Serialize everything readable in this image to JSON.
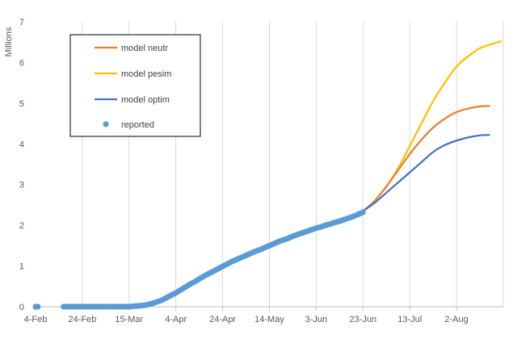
{
  "chart_data": {
    "type": "line",
    "title": "",
    "xlabel": "",
    "ylabel": "Millions",
    "x_start": "4-Feb",
    "x_ticks": [
      "4-Feb",
      "24-Feb",
      "15-Mar",
      "4-Apr",
      "24-Apr",
      "14-May",
      "3-Jun",
      "23-Jun",
      "13-Jul",
      "2-Aug"
    ],
    "x_tick_days": [
      0,
      20,
      40,
      60,
      80,
      100,
      120,
      140,
      160,
      180
    ],
    "xlim_days": [
      0,
      200
    ],
    "y_ticks": [
      "0",
      "1",
      "2",
      "3",
      "4",
      "5",
      "6",
      "7"
    ],
    "ylim": [
      0,
      7
    ],
    "grid": "vertical",
    "legend": {
      "placement": "top-left",
      "entries": [
        "model neutr",
        "model pesim",
        "model optim",
        "reported"
      ]
    },
    "series": [
      {
        "name": "model neutr",
        "style": "line",
        "color": "#ED7D31",
        "x_days": [
          140,
          145,
          150,
          155,
          160,
          165,
          170,
          175,
          180,
          185,
          190,
          194
        ],
        "values": [
          2.35,
          2.6,
          2.95,
          3.35,
          3.75,
          4.1,
          4.4,
          4.62,
          4.78,
          4.87,
          4.92,
          4.93
        ]
      },
      {
        "name": "model pesim",
        "style": "line",
        "color": "#FFC000",
        "x_days": [
          140,
          145,
          150,
          155,
          160,
          165,
          170,
          175,
          180,
          185,
          190,
          195,
          199
        ],
        "values": [
          2.35,
          2.6,
          2.95,
          3.4,
          3.95,
          4.5,
          5.05,
          5.5,
          5.9,
          6.15,
          6.35,
          6.45,
          6.52
        ]
      },
      {
        "name": "model optim",
        "style": "line",
        "color": "#4472C4",
        "x_days": [
          140,
          145,
          150,
          155,
          160,
          165,
          170,
          175,
          180,
          185,
          190,
          194
        ],
        "values": [
          2.35,
          2.55,
          2.8,
          3.05,
          3.3,
          3.55,
          3.8,
          3.97,
          4.08,
          4.16,
          4.21,
          4.22
        ]
      },
      {
        "name": "reported",
        "style": "markers",
        "color": "#5B9BD5",
        "x_days": [
          0,
          1,
          12,
          14,
          16,
          18,
          20,
          22,
          24,
          26,
          28,
          30,
          32,
          34,
          36,
          38,
          40,
          42,
          44,
          46,
          48,
          50,
          52,
          54,
          56,
          58,
          60,
          62,
          64,
          66,
          68,
          70,
          72,
          74,
          76,
          78,
          80,
          82,
          84,
          86,
          88,
          90,
          92,
          94,
          96,
          98,
          100,
          102,
          104,
          106,
          108,
          110,
          112,
          114,
          116,
          118,
          120,
          122,
          124,
          126,
          128,
          130,
          132,
          134,
          136,
          138,
          140
        ],
        "values": [
          0.0,
          0.0,
          0.0,
          0.0,
          0.0,
          0.0,
          0.0,
          0.0,
          0.0,
          0.0,
          0.0,
          0.0,
          0.0,
          0.0,
          0.0,
          0.0,
          0.0,
          0.01,
          0.02,
          0.03,
          0.05,
          0.08,
          0.12,
          0.16,
          0.22,
          0.28,
          0.34,
          0.41,
          0.48,
          0.55,
          0.61,
          0.68,
          0.75,
          0.81,
          0.87,
          0.93,
          0.99,
          1.05,
          1.11,
          1.16,
          1.21,
          1.26,
          1.31,
          1.36,
          1.4,
          1.45,
          1.5,
          1.55,
          1.6,
          1.64,
          1.68,
          1.73,
          1.77,
          1.81,
          1.85,
          1.89,
          1.93,
          1.96,
          2.0,
          2.03,
          2.07,
          2.1,
          2.14,
          2.18,
          2.22,
          2.27,
          2.32
        ]
      }
    ]
  }
}
